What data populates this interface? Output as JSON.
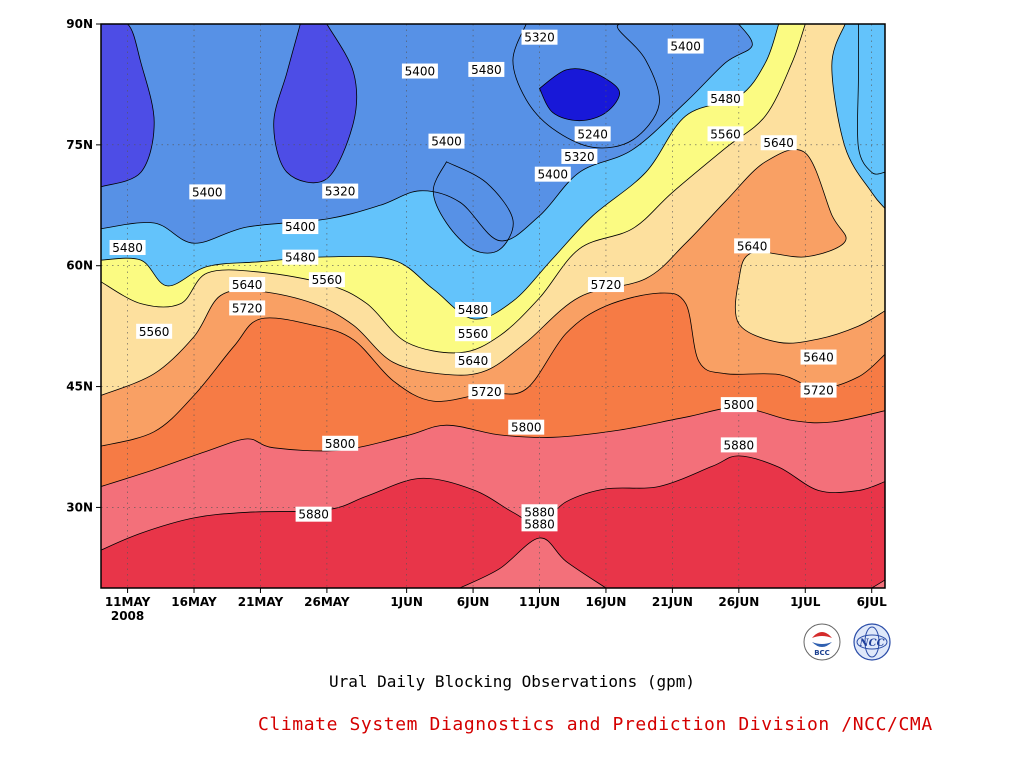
{
  "chart_data": {
    "type": "heatmap",
    "subtype": "filled-contour",
    "title": "Ural Daily Blocking Observations (gpm)",
    "credit": "Climate System Diagnostics and Prediction Division /NCC/CMA",
    "logos": [
      "bcc-logo",
      "ncc-logo"
    ],
    "x_axis": {
      "type": "date",
      "range": [
        "2008-05-09",
        "2008-07-07"
      ],
      "tick_labels": [
        "11MAY",
        "16MAY",
        "21MAY",
        "26MAY",
        "1JUN",
        "6JUN",
        "11JUN",
        "16JUN",
        "21JUN",
        "26JUN",
        "1JUL",
        "6JUL"
      ],
      "tick_dates": [
        "2008-05-11",
        "2008-05-16",
        "2008-05-21",
        "2008-05-26",
        "2008-06-01",
        "2008-06-06",
        "2008-06-11",
        "2008-06-16",
        "2008-06-21",
        "2008-06-26",
        "2008-07-01",
        "2008-07-06"
      ],
      "year_label": "2008"
    },
    "y_axis": {
      "unit": "latitude",
      "range": [
        20,
        90
      ],
      "tick_labels": [
        "30N",
        "45N",
        "60N",
        "75N",
        "90N"
      ],
      "ticks": [
        30,
        45,
        60,
        75,
        90
      ]
    },
    "grid": "dotted",
    "contour_levels": [
      5240,
      5320,
      5400,
      5480,
      5560,
      5640,
      5720,
      5800,
      5880
    ],
    "fill_colors": {
      "below_5240": "#1818d8",
      "5240_5320": "#4d4de6",
      "5320_5400": "#5791e6",
      "5400_5480": "#63c3fb",
      "5480_5560": "#fbfb82",
      "5560_5640": "#fde09e",
      "5640_5720": "#f9a064",
      "5720_5800": "#f67b45",
      "5800_5880": "#f3707a",
      "above_5880": "#e83549"
    },
    "contour_labels": [
      {
        "text": "5320",
        "date": "2008-06-11",
        "lat": 88.3
      },
      {
        "text": "5400",
        "date": "2008-06-22",
        "lat": 87.2
      },
      {
        "text": "5480",
        "date": "2008-06-07",
        "lat": 84.3
      },
      {
        "text": "5400",
        "date": "2008-06-02",
        "lat": 84.1
      },
      {
        "text": "5480",
        "date": "2008-06-25",
        "lat": 80.7
      },
      {
        "text": "5240",
        "date": "2008-06-15",
        "lat": 76.3
      },
      {
        "text": "5560",
        "date": "2008-06-25",
        "lat": 76.3
      },
      {
        "text": "5400",
        "date": "2008-06-04",
        "lat": 75.4
      },
      {
        "text": "5640",
        "date": "2008-06-29",
        "lat": 75.2
      },
      {
        "text": "5320",
        "date": "2008-06-14",
        "lat": 73.5
      },
      {
        "text": "5400",
        "date": "2008-06-12",
        "lat": 71.3
      },
      {
        "text": "5400",
        "date": "2008-05-17",
        "lat": 69.1
      },
      {
        "text": "5320",
        "date": "2008-05-27",
        "lat": 69.2
      },
      {
        "text": "5400",
        "date": "2008-05-24",
        "lat": 64.8
      },
      {
        "text": "5480",
        "date": "2008-05-11",
        "lat": 62.2
      },
      {
        "text": "5640",
        "date": "2008-06-27",
        "lat": 62.4
      },
      {
        "text": "5480",
        "date": "2008-05-24",
        "lat": 61.0
      },
      {
        "text": "5560",
        "date": "2008-05-26",
        "lat": 58.2
      },
      {
        "text": "5640",
        "date": "2008-05-20",
        "lat": 57.6
      },
      {
        "text": "5720",
        "date": "2008-06-16",
        "lat": 57.6
      },
      {
        "text": "5720",
        "date": "2008-05-20",
        "lat": 54.7
      },
      {
        "text": "5480",
        "date": "2008-06-06",
        "lat": 54.5
      },
      {
        "text": "5560",
        "date": "2008-05-13",
        "lat": 51.8
      },
      {
        "text": "5560",
        "date": "2008-06-06",
        "lat": 51.5
      },
      {
        "text": "5640",
        "date": "2008-07-02",
        "lat": 48.6
      },
      {
        "text": "5640",
        "date": "2008-06-06",
        "lat": 48.2
      },
      {
        "text": "5720",
        "date": "2008-07-02",
        "lat": 44.5
      },
      {
        "text": "5720",
        "date": "2008-06-07",
        "lat": 44.3
      },
      {
        "text": "5800",
        "date": "2008-06-26",
        "lat": 42.7
      },
      {
        "text": "5800",
        "date": "2008-06-10",
        "lat": 39.9
      },
      {
        "text": "5800",
        "date": "2008-05-27",
        "lat": 37.9
      },
      {
        "text": "5880",
        "date": "2008-06-26",
        "lat": 37.7
      },
      {
        "text": "5880",
        "date": "2008-05-25",
        "lat": 29.1
      },
      {
        "text": "5880",
        "date": "2008-06-11",
        "lat": 29.4
      },
      {
        "text": "5880",
        "date": "2008-06-11",
        "lat": 27.9
      }
    ],
    "fill_bands": [
      {
        "color_key": "5800_5880",
        "bottom_lat_at_dates": [
          [
            "2008-05-09",
            32.6
          ],
          [
            "2008-05-16",
            37.1
          ],
          [
            "2008-05-20",
            38.5
          ],
          [
            "2008-06-01",
            38.4
          ],
          [
            "2008-06-10",
            38.9
          ],
          [
            "2008-06-22",
            40.9
          ],
          [
            "2008-06-26",
            42.4
          ],
          [
            "2008-07-07",
            42.0
          ]
        ],
        "top_lat_at_dates": [
          [
            "2008-05-09",
            32.6
          ],
          [
            "2008-05-16",
            37.1
          ],
          [
            "2008-05-20",
            38.5
          ],
          [
            "2008-06-01",
            38.4
          ],
          [
            "2008-06-10",
            38.9
          ],
          [
            "2008-06-22",
            40.9
          ],
          [
            "2008-06-26",
            42.4
          ],
          [
            "2008-07-07",
            42.0
          ]
        ]
      },
      {
        "note": "fields"
      }
    ],
    "contours": {
      "c5880_main": [
        [
          "2008-05-09",
          24.7
        ],
        [
          "2008-05-12",
          26.8
        ],
        [
          "2008-05-16",
          28.7
        ],
        [
          "2008-05-20",
          29.4
        ],
        [
          "2008-05-26",
          29.7
        ],
        [
          "2008-05-29",
          31.4
        ],
        [
          "2008-06-02",
          33.6
        ],
        [
          "2008-06-06",
          32.2
        ],
        [
          "2008-06-09",
          29.4
        ],
        [
          "2008-06-11",
          27.9
        ],
        [
          "2008-06-13",
          30.7
        ],
        [
          "2008-06-16",
          32.3
        ],
        [
          "2008-06-20",
          32.6
        ],
        [
          "2008-06-24",
          35.1
        ],
        [
          "2008-06-26",
          36.4
        ],
        [
          "2008-06-29",
          35.0
        ],
        [
          "2008-07-02",
          32.1
        ],
        [
          "2008-07-05",
          32.1
        ],
        [
          "2008-07-07",
          33.2
        ]
      ],
      "c5880_bottom": [
        [
          "2008-06-05",
          20.0
        ],
        [
          "2008-06-08",
          22.4
        ],
        [
          "2008-06-11",
          26.2
        ],
        [
          "2008-06-13",
          23.3
        ],
        [
          "2008-06-16",
          20.0
        ]
      ],
      "c5880_corner": [
        [
          "2008-07-06",
          20.0
        ],
        [
          "2008-07-07",
          21.0
        ]
      ],
      "c5800": [
        [
          "2008-05-09",
          32.6
        ],
        [
          "2008-05-13",
          34.7
        ],
        [
          "2008-05-17",
          37.0
        ],
        [
          "2008-05-20",
          38.5
        ],
        [
          "2008-05-22",
          37.4
        ],
        [
          "2008-05-27",
          37.1
        ],
        [
          "2008-06-01",
          38.9
        ],
        [
          "2008-06-04",
          40.2
        ],
        [
          "2008-06-08",
          39.0
        ],
        [
          "2008-06-12",
          38.7
        ],
        [
          "2008-06-17",
          39.6
        ],
        [
          "2008-06-22",
          41.2
        ],
        [
          "2008-06-26",
          42.4
        ],
        [
          "2008-06-30",
          40.8
        ],
        [
          "2008-07-03",
          40.6
        ],
        [
          "2008-07-07",
          42.0
        ]
      ],
      "c5720": [
        [
          "2008-05-09",
          37.6
        ],
        [
          "2008-05-13",
          39.4
        ],
        [
          "2008-05-16",
          43.9
        ],
        [
          "2008-05-19",
          50.0
        ],
        [
          "2008-05-21",
          53.4
        ],
        [
          "2008-05-25",
          52.6
        ],
        [
          "2008-05-28",
          50.8
        ],
        [
          "2008-05-31",
          45.7
        ],
        [
          "2008-06-03",
          43.2
        ],
        [
          "2008-06-07",
          44.2
        ],
        [
          "2008-06-10",
          44.7
        ],
        [
          "2008-06-13",
          51.6
        ],
        [
          "2008-06-16",
          55.0
        ],
        [
          "2008-06-20",
          56.6
        ],
        [
          "2008-06-22",
          55.3
        ],
        [
          "2008-06-23",
          48.1
        ],
        [
          "2008-06-25",
          46.6
        ],
        [
          "2008-06-29",
          46.5
        ],
        [
          "2008-07-02",
          44.8
        ],
        [
          "2008-07-05",
          46.2
        ],
        [
          "2008-07-07",
          49.0
        ]
      ],
      "c5640": [
        [
          "2008-05-09",
          43.9
        ],
        [
          "2008-05-13",
          46.6
        ],
        [
          "2008-05-16",
          51.2
        ],
        [
          "2008-05-18",
          56.3
        ],
        [
          "2008-05-21",
          56.8
        ],
        [
          "2008-05-25",
          55.3
        ],
        [
          "2008-05-28",
          52.6
        ],
        [
          "2008-05-31",
          48.0
        ],
        [
          "2008-06-04",
          46.5
        ],
        [
          "2008-06-07",
          47.0
        ],
        [
          "2008-06-10",
          50.5
        ],
        [
          "2008-06-14",
          56.1
        ],
        [
          "2008-06-19",
          58.4
        ],
        [
          "2008-06-22",
          62.8
        ],
        [
          "2008-06-25",
          68.0
        ],
        [
          "2008-06-28",
          72.9
        ],
        [
          "2008-07-01",
          74.0
        ],
        [
          "2008-07-03",
          66.3
        ],
        [
          "2008-07-04",
          63.0
        ],
        [
          "2008-07-01",
          61.1
        ],
        [
          "2008-06-27",
          61.6
        ],
        [
          "2008-06-26",
          58.2
        ],
        [
          "2008-06-26",
          52.8
        ],
        [
          "2008-06-29",
          50.5
        ],
        [
          "2008-07-02",
          50.9
        ],
        [
          "2008-07-05",
          52.5
        ],
        [
          "2008-07-07",
          54.4
        ]
      ],
      "c5560": [
        [
          "2008-05-09",
          58.0
        ],
        [
          "2008-05-12",
          55.3
        ],
        [
          "2008-05-15",
          55.3
        ],
        [
          "2008-05-17",
          59.1
        ],
        [
          "2008-05-21",
          59.2
        ],
        [
          "2008-05-26",
          57.7
        ],
        [
          "2008-05-29",
          55.3
        ],
        [
          "2008-06-01",
          50.5
        ],
        [
          "2008-06-05",
          49.2
        ],
        [
          "2008-06-08",
          51.3
        ],
        [
          "2008-06-11",
          56.0
        ],
        [
          "2008-06-14",
          62.1
        ],
        [
          "2008-06-18",
          64.6
        ],
        [
          "2008-06-21",
          69.1
        ],
        [
          "2008-06-25",
          74.6
        ],
        [
          "2008-06-28",
          78.6
        ],
        [
          "2008-06-30",
          85.2
        ],
        [
          "2008-07-01",
          90.0
        ]
      ],
      "c5560_tr": [
        [
          "2008-07-04",
          90.0
        ],
        [
          "2008-07-03",
          84.8
        ],
        [
          "2008-07-04",
          74.7
        ],
        [
          "2008-07-06",
          69.1
        ],
        [
          "2008-07-07",
          67.1
        ]
      ],
      "c5480": [
        [
          "2008-05-09",
          60.7
        ],
        [
          "2008-05-12",
          60.7
        ],
        [
          "2008-05-14",
          57.5
        ],
        [
          "2008-05-17",
          59.9
        ],
        [
          "2008-05-21",
          60.5
        ],
        [
          "2008-05-26",
          61.1
        ],
        [
          "2008-05-31",
          60.7
        ],
        [
          "2008-06-03",
          57.1
        ],
        [
          "2008-06-06",
          53.4
        ],
        [
          "2008-06-09",
          55.6
        ],
        [
          "2008-06-12",
          60.9
        ],
        [
          "2008-06-15",
          66.2
        ],
        [
          "2008-06-19",
          71.6
        ],
        [
          "2008-06-22",
          78.6
        ],
        [
          "2008-06-26",
          81.0
        ],
        [
          "2008-06-28",
          85.2
        ],
        [
          "2008-06-29",
          90.0
        ]
      ],
      "c5480_tr": [
        [
          "2008-07-05",
          90.0
        ],
        [
          "2008-07-05",
          83.2
        ],
        [
          "2008-07-05",
          74.7
        ],
        [
          "2008-07-06",
          71.6
        ],
        [
          "2008-07-07",
          71.6
        ]
      ],
      "c5400_main": [
        [
          "2008-05-09",
          64.6
        ],
        [
          "2008-05-13",
          65.3
        ],
        [
          "2008-05-16",
          62.8
        ],
        [
          "2008-05-20",
          64.8
        ],
        [
          "2008-05-26",
          65.8
        ],
        [
          "2008-05-30",
          67.5
        ],
        [
          "2008-06-02",
          69.3
        ],
        [
          "2008-06-05",
          67.9
        ],
        [
          "2008-06-08",
          63.1
        ],
        [
          "2008-06-11",
          66.2
        ],
        [
          "2008-06-14",
          71.6
        ],
        [
          "2008-06-18",
          74.4
        ],
        [
          "2008-06-22",
          80.3
        ],
        [
          "2008-06-25",
          85.2
        ],
        [
          "2008-06-27",
          87.3
        ],
        [
          "2008-06-26",
          90.0
        ]
      ],
      "c5400_isl": [
        [
          "2008-06-04",
          72.9
        ],
        [
          "2008-06-07",
          70.3
        ],
        [
          "2008-06-09",
          65.7
        ],
        [
          "2008-06-08",
          62.0
        ],
        [
          "2008-06-06",
          62.0
        ],
        [
          "2008-06-04",
          65.3
        ],
        [
          "2008-06-03",
          69.3
        ],
        [
          "2008-06-04",
          72.9
        ]
      ],
      "c5320_top": [
        [
          "2008-06-10",
          90.0
        ],
        [
          "2008-06-09",
          85.5
        ],
        [
          "2008-06-10",
          80.6
        ],
        [
          "2008-06-12",
          77.0
        ],
        [
          "2008-06-15",
          74.7
        ],
        [
          "2008-06-18",
          75.6
        ],
        [
          "2008-06-20",
          80.0
        ],
        [
          "2008-06-19",
          85.5
        ],
        [
          "2008-06-17",
          89.2
        ],
        [
          "2008-06-17",
          90.0
        ]
      ],
      "c5240": [
        [
          "2008-06-11",
          82.0
        ],
        [
          "2008-06-12",
          79.0
        ],
        [
          "2008-06-14",
          78.0
        ],
        [
          "2008-06-16",
          79.0
        ],
        [
          "2008-06-17",
          81.7
        ],
        [
          "2008-06-15",
          84.0
        ],
        [
          "2008-06-13",
          84.3
        ],
        [
          "2008-06-11",
          82.0
        ]
      ],
      "c5320_left": [
        [
          "2008-05-09",
          90.0
        ],
        [
          "2008-05-11",
          90.0
        ],
        [
          "2008-05-12",
          85.2
        ],
        [
          "2008-05-13",
          77.8
        ],
        [
          "2008-05-12",
          71.6
        ],
        [
          "2008-05-09",
          69.8
        ]
      ],
      "c5320_mid": [
        [
          "2008-05-26",
          90.0
        ],
        [
          "2008-05-28",
          84.0
        ],
        [
          "2008-05-28",
          77.8
        ],
        [
          "2008-05-26",
          70.8
        ],
        [
          "2008-05-23",
          71.6
        ],
        [
          "2008-05-22",
          77.6
        ],
        [
          "2008-05-23",
          84.0
        ],
        [
          "2008-05-24",
          90.0
        ]
      ]
    }
  }
}
